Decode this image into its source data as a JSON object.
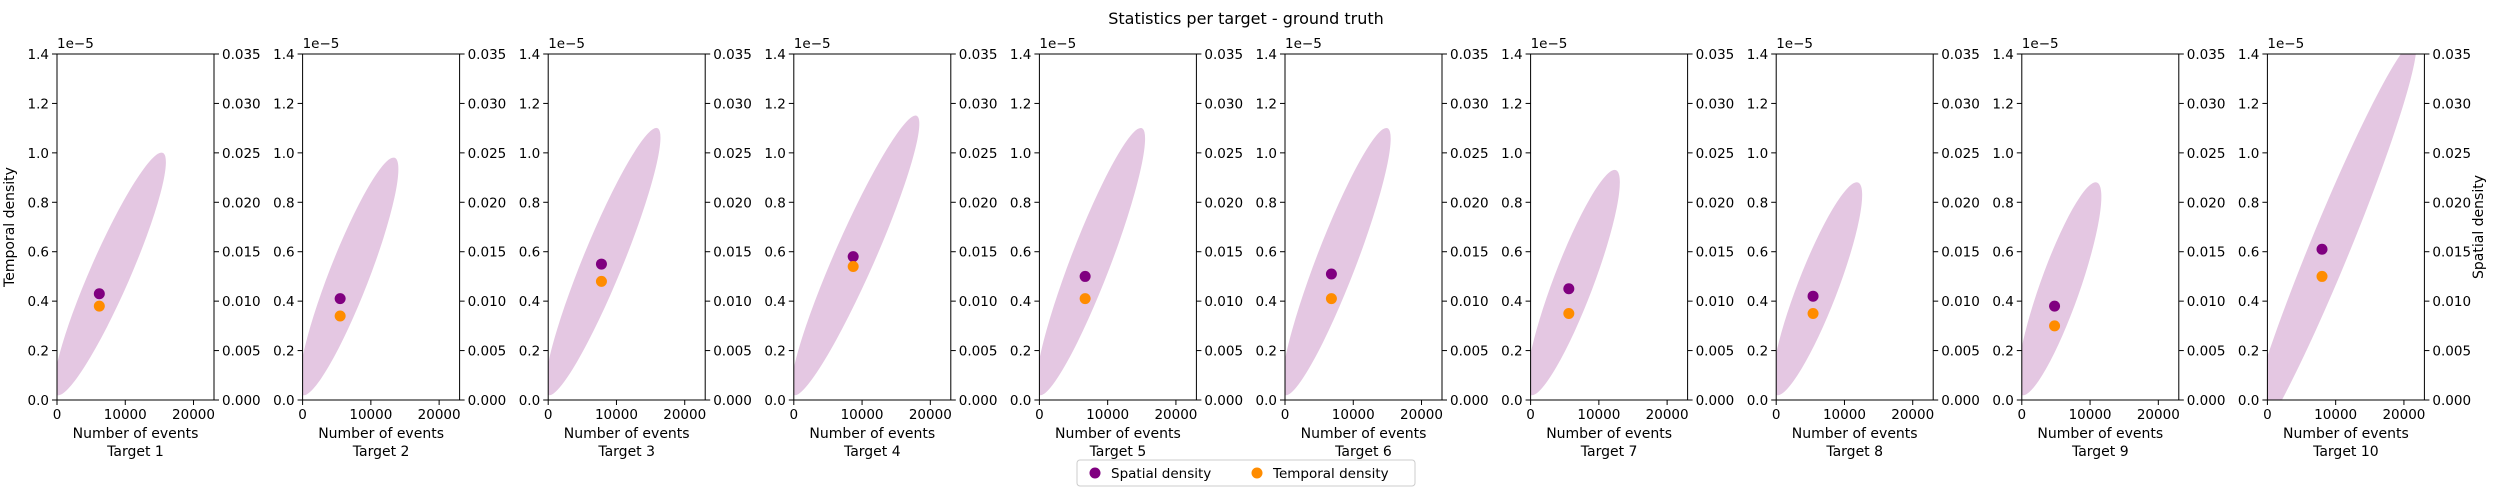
{
  "figure": {
    "title": "Statistics per target - ground truth",
    "left_ylabel": "Temporal density",
    "right_ylabel": "Spatial density",
    "xlabel": "Number of events",
    "left_offset_label": "1e−5"
  },
  "colors": {
    "spatial": "#800080",
    "temporal": "#ff8c00",
    "ellipse": "#e4c7e2"
  },
  "legend": {
    "placement": "bottom-center",
    "items": [
      {
        "label": "Spatial density",
        "color": "#800080"
      },
      {
        "label": "Temporal density",
        "color": "#ff8c00"
      }
    ]
  },
  "chart_data": {
    "type": "scatter",
    "x_range": [
      0,
      23000
    ],
    "x_ticks": [
      0,
      10000,
      20000
    ],
    "x_tick_labels": [
      "0",
      "10000",
      "20000"
    ],
    "left_y_range": [
      0,
      1.4
    ],
    "left_y_ticks": [
      0,
      0.2,
      0.4,
      0.6,
      0.8,
      1.0,
      1.2,
      1.4
    ],
    "left_y_tick_labels": [
      "0.0",
      "0.2",
      "0.4",
      "0.6",
      "0.8",
      "1.0",
      "1.2",
      "1.4"
    ],
    "right_y_range": [
      0,
      0.035
    ],
    "right_y_ticks": [
      0,
      0.005,
      0.01,
      0.015,
      0.02,
      0.025,
      0.03,
      0.035
    ],
    "right_y_tick_labels": [
      "0.000",
      "0.005",
      "0.010",
      "0.015",
      "0.020",
      "0.025",
      "0.030",
      "0.035"
    ],
    "grid": false,
    "targets": [
      {
        "label": "Target 1",
        "events": 6200,
        "spatial": 0.43,
        "temporal": 0.38,
        "ellipse_low": [
          0,
          0.02
        ],
        "ellipse_high": [
          15500,
          1.0
        ]
      },
      {
        "label": "Target 2",
        "events": 5500,
        "spatial": 0.41,
        "temporal": 0.34,
        "ellipse_low": [
          0,
          0.02
        ],
        "ellipse_high": [
          13500,
          0.98
        ]
      },
      {
        "label": "Target 3",
        "events": 7800,
        "spatial": 0.55,
        "temporal": 0.48,
        "ellipse_low": [
          0,
          0.02
        ],
        "ellipse_high": [
          16000,
          1.1
        ]
      },
      {
        "label": "Target 4",
        "events": 8700,
        "spatial": 0.58,
        "temporal": 0.54,
        "ellipse_low": [
          0,
          0.02
        ],
        "ellipse_high": [
          18000,
          1.15
        ]
      },
      {
        "label": "Target 5",
        "events": 6700,
        "spatial": 0.5,
        "temporal": 0.41,
        "ellipse_low": [
          0,
          0.02
        ],
        "ellipse_high": [
          15000,
          1.1
        ]
      },
      {
        "label": "Target 6",
        "events": 6800,
        "spatial": 0.51,
        "temporal": 0.41,
        "ellipse_low": [
          0,
          0.02
        ],
        "ellipse_high": [
          15000,
          1.1
        ]
      },
      {
        "label": "Target 7",
        "events": 5600,
        "spatial": 0.45,
        "temporal": 0.35,
        "ellipse_low": [
          0,
          0.02
        ],
        "ellipse_high": [
          12500,
          0.93
        ]
      },
      {
        "label": "Target 8",
        "events": 5400,
        "spatial": 0.42,
        "temporal": 0.35,
        "ellipse_low": [
          0,
          0.02
        ],
        "ellipse_high": [
          12000,
          0.88
        ]
      },
      {
        "label": "Target 9",
        "events": 4800,
        "spatial": 0.38,
        "temporal": 0.3,
        "ellipse_low": [
          0,
          0.02
        ],
        "ellipse_high": [
          11000,
          0.88
        ]
      },
      {
        "label": "Target 10",
        "events": 8000,
        "spatial": 0.61,
        "temporal": 0.5,
        "ellipse_low": [
          -3000,
          -0.2
        ],
        "ellipse_high": [
          21500,
          1.45
        ]
      }
    ]
  }
}
